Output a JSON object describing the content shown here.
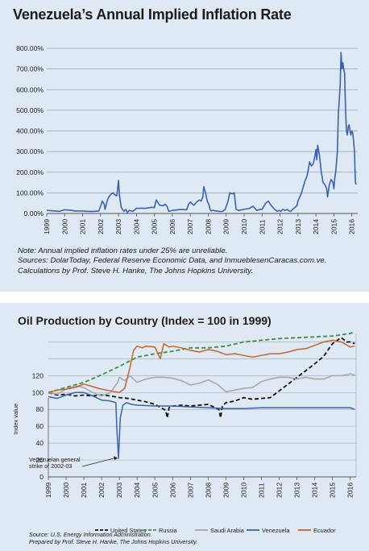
{
  "chart_data": [
    {
      "type": "line",
      "title": "Venezuela’s Annual Implied Inflation Rate",
      "ylim": [
        0,
        800
      ],
      "y_tick_labels": [
        "0.00%",
        "100.00%",
        "200.00%",
        "300.00%",
        "400.00%",
        "500.00%",
        "600.00%",
        "700.00%",
        "800.00%"
      ],
      "x_tick_labels": [
        "1999",
        "2000",
        "2001",
        "2002",
        "2003",
        "2004",
        "2005",
        "2006",
        "2007",
        "2008",
        "2009",
        "2010",
        "2011",
        "2012",
        "2013",
        "2014",
        "2015",
        "2016"
      ],
      "xlim": [
        1999.0,
        2016.33
      ],
      "grid": true,
      "colors": {
        "line": "#3b63ad",
        "grid": "#9aa3ad"
      },
      "series": [
        {
          "x": [
            1999.0,
            1999.5,
            1999.7,
            2000.0,
            2000.3,
            2000.6,
            2001.0,
            2001.3,
            2001.6,
            2001.9,
            2002.0,
            2002.1,
            2002.2,
            2002.25,
            2002.4,
            2002.5,
            2002.6,
            2002.7,
            2002.8,
            2002.9,
            2002.95,
            2003.0,
            2003.05,
            2003.15,
            2003.3,
            2003.4,
            2003.5,
            2003.6,
            2003.8,
            2004.0,
            2004.5,
            2004.9,
            2005.0,
            2005.1,
            2005.3,
            2005.5,
            2005.6,
            2005.7,
            2005.8,
            2005.9,
            2006.0,
            2006.5,
            2006.8,
            2006.9,
            2007.0,
            2007.2,
            2007.35,
            2007.5,
            2007.6,
            2007.7,
            2007.75,
            2007.85,
            2007.95,
            2008.05,
            2008.1,
            2008.15,
            2008.25,
            2008.6,
            2008.8,
            2008.95,
            2009.1,
            2009.2,
            2009.35,
            2009.45,
            2009.55,
            2009.7,
            2010.0,
            2010.3,
            2010.5,
            2010.7,
            2010.9,
            2011.0,
            2011.2,
            2011.35,
            2011.5,
            2011.7,
            2011.85,
            2011.95,
            2012.05,
            2012.15,
            2012.3,
            2012.4,
            2012.5,
            2012.6,
            2012.7,
            2012.85,
            2012.95,
            2013.0,
            2013.1,
            2013.2,
            2013.3,
            2013.4,
            2013.5,
            2013.55,
            2013.65,
            2013.75,
            2013.85,
            2013.95,
            2014.0,
            2014.05,
            2014.1,
            2014.2,
            2014.3,
            2014.4,
            2014.5,
            2014.6,
            2014.65,
            2014.75,
            2014.85,
            2014.95,
            2015.0,
            2015.05,
            2015.1,
            2015.15,
            2015.2,
            2015.25,
            2015.3,
            2015.35,
            2015.4,
            2015.45,
            2015.5,
            2015.55,
            2015.6,
            2015.65,
            2015.7,
            2015.75,
            2015.8,
            2015.85,
            2015.9,
            2015.95,
            2016.0,
            2016.05,
            2016.1,
            2016.15,
            2016.2,
            2016.25
          ],
          "y": [
            15,
            12,
            10,
            18,
            16,
            12,
            12,
            10,
            10,
            12,
            35,
            60,
            45,
            20,
            70,
            85,
            95,
            100,
            90,
            85,
            120,
            160,
            90,
            30,
            10,
            20,
            5,
            15,
            10,
            25,
            25,
            30,
            28,
            65,
            40,
            38,
            45,
            35,
            10,
            12,
            15,
            20,
            18,
            45,
            55,
            40,
            55,
            65,
            60,
            80,
            130,
            100,
            60,
            40,
            20,
            12,
            15,
            10,
            10,
            20,
            60,
            100,
            95,
            100,
            20,
            15,
            20,
            25,
            35,
            15,
            20,
            20,
            50,
            60,
            40,
            20,
            10,
            15,
            10,
            20,
            15,
            20,
            12,
            10,
            20,
            30,
            40,
            60,
            80,
            100,
            130,
            160,
            180,
            200,
            250,
            230,
            240,
            280,
            310,
            260,
            330,
            280,
            200,
            150,
            140,
            120,
            80,
            140,
            165,
            150,
            120,
            170,
            200,
            250,
            300,
            480,
            550,
            620,
            780,
            700,
            730,
            700,
            680,
            500,
            400,
            380,
            420,
            430,
            400,
            380,
            400,
            390,
            350,
            300,
            150,
            140
          ]
        }
      ]
    },
    {
      "type": "line",
      "title": "Oil Production by Country (Index = 100 in 1999)",
      "ylabel": "Index value",
      "ylim": [
        0,
        170
      ],
      "y_tick_labels": [
        "0",
        "20",
        "40",
        "60",
        "80",
        "100",
        "120"
      ],
      "x_tick_labels": [
        "1999",
        "2000",
        "2001",
        "2002",
        "2003",
        "2004",
        "2005",
        "2006",
        "2007",
        "2008",
        "2009",
        "2010",
        "2011",
        "2012",
        "2013",
        "2014",
        "2015",
        "2016"
      ],
      "xlim": [
        1999.0,
        2016.33
      ],
      "legend_position": "bottom",
      "annotations": [
        "Venezuelan general",
        "strike of 2002-03"
      ],
      "source_lines": [
        "Source: U.S. Energy Information Administration.",
        "Prepared by Prof. Steve H. Hanke, The Johns Hopkins University."
      ],
      "series": [
        {
          "name": "United States",
          "color": "#111111",
          "style": "dashed",
          "x": [
            1999.0,
            1999.5,
            2000.0,
            2000.5,
            2001.0,
            2001.5,
            2002.0,
            2002.5,
            2003.0,
            2003.5,
            2004.0,
            2004.5,
            2005.0,
            2005.6,
            2005.7,
            2005.8,
            2006.0,
            2006.5,
            2007.0,
            2007.5,
            2008.0,
            2008.6,
            2008.7,
            2008.8,
            2009.0,
            2009.5,
            2010.0,
            2010.5,
            2011.0,
            2011.5,
            2012.0,
            2012.5,
            2013.0,
            2013.5,
            2014.0,
            2014.5,
            2015.0,
            2015.2,
            2015.5,
            2015.8,
            2016.0,
            2016.25
          ],
          "y": [
            100,
            97,
            98,
            96,
            97,
            96,
            97,
            96,
            94,
            93,
            91,
            89,
            86,
            79,
            70,
            82,
            84,
            85,
            84,
            85,
            86,
            80,
            70,
            84,
            88,
            90,
            94,
            92,
            93,
            94,
            102,
            110,
            118,
            126,
            134,
            143,
            158,
            161,
            165,
            160,
            160,
            158
          ]
        },
        {
          "name": "Russia",
          "color": "#3f8f3f",
          "style": "dashed",
          "x": [
            1999.0,
            2000.0,
            2001.0,
            2002.0,
            2003.0,
            2004.0,
            2005.0,
            2006.0,
            2007.0,
            2008.0,
            2009.0,
            2010.0,
            2011.0,
            2012.0,
            2013.0,
            2014.0,
            2015.0,
            2016.0,
            2016.25
          ],
          "y": [
            100,
            106,
            112,
            121,
            131,
            142,
            146,
            149,
            153,
            153,
            155,
            160,
            162,
            164,
            165,
            166,
            167,
            170,
            172
          ]
        },
        {
          "name": "Saudi Arabia",
          "color": "#a6a6a6",
          "style": "solid",
          "x": [
            1999.0,
            1999.5,
            2000.0,
            2000.5,
            2001.0,
            2001.5,
            2002.0,
            2002.5,
            2002.9,
            2003.0,
            2003.3,
            2003.6,
            2004.0,
            2004.5,
            2005.0,
            2005.5,
            2006.0,
            2006.5,
            2007.0,
            2007.5,
            2008.0,
            2008.5,
            2009.0,
            2009.5,
            2010.0,
            2010.5,
            2011.0,
            2011.5,
            2012.0,
            2012.5,
            2013.0,
            2013.5,
            2014.0,
            2014.5,
            2015.0,
            2015.5,
            2016.0,
            2016.25
          ],
          "y": [
            100,
            98,
            104,
            108,
            106,
            100,
            96,
            100,
            112,
            118,
            114,
            120,
            112,
            116,
            118,
            118,
            117,
            114,
            109,
            111,
            115,
            110,
            101,
            103,
            105,
            106,
            113,
            116,
            118,
            118,
            116,
            118,
            116,
            116,
            120,
            120,
            122,
            121
          ]
        },
        {
          "name": "Venezuela",
          "color": "#3b63ad",
          "style": "solid",
          "x": [
            1999.0,
            1999.5,
            2000.0,
            2000.5,
            2001.0,
            2001.5,
            2002.0,
            2002.5,
            2002.8,
            2002.85,
            2002.95,
            2003.05,
            2003.2,
            2003.4,
            2003.7,
            2004.0,
            2005.0,
            2006.0,
            2007.0,
            2008.0,
            2009.0,
            2010.0,
            2011.0,
            2012.0,
            2013.0,
            2014.0,
            2015.0,
            2016.0,
            2016.25
          ],
          "y": [
            95,
            93,
            97,
            100,
            100,
            96,
            91,
            90,
            88,
            60,
            22,
            70,
            85,
            88,
            86,
            85,
            84,
            84,
            83,
            82,
            81,
            81,
            82,
            82,
            82,
            82,
            82,
            82,
            80
          ]
        },
        {
          "name": "Ecuador",
          "color": "#c8632b",
          "style": "solid",
          "x": [
            1999.0,
            1999.5,
            2000.0,
            2000.5,
            2001.0,
            2001.5,
            2002.0,
            2002.5,
            2003.0,
            2003.3,
            2003.6,
            2003.8,
            2004.0,
            2004.3,
            2004.5,
            2005.0,
            2005.3,
            2005.5,
            2005.8,
            2006.0,
            2006.5,
            2007.0,
            2007.5,
            2008.0,
            2008.5,
            2009.0,
            2009.5,
            2010.0,
            2010.5,
            2011.0,
            2011.5,
            2012.0,
            2012.5,
            2013.0,
            2013.5,
            2014.0,
            2014.5,
            2015.0,
            2015.5,
            2016.0,
            2016.25
          ],
          "y": [
            100,
            103,
            104,
            106,
            110,
            107,
            104,
            102,
            100,
            105,
            130,
            150,
            155,
            153,
            155,
            154,
            140,
            158,
            154,
            155,
            153,
            150,
            148,
            151,
            149,
            145,
            146,
            144,
            142,
            144,
            146,
            146,
            148,
            151,
            152,
            156,
            160,
            162,
            160,
            154,
            155
          ]
        }
      ]
    }
  ],
  "text": {
    "title1": "Venezuela’s Annual Implied Inflation Rate",
    "note_lines": [
      "Note: Annual implied inflation rates under 25% are unreliable.",
      "Sources: DolarToday, Federal Reserve Economic Data, and InmueblesenCaracas.com.ve.",
      "Calculations by Prof. Steve H. Hanke, The Johns Hopkins University."
    ],
    "title2": "Oil Production by Country (Index = 100 in 1999)"
  }
}
